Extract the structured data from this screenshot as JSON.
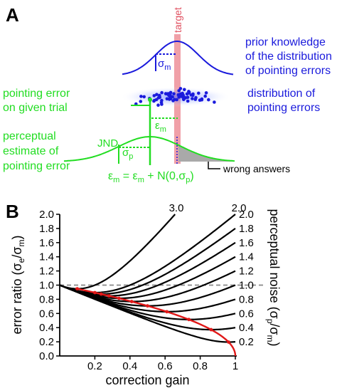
{
  "panel_a": {
    "label": "A",
    "target_label": "target",
    "prior": {
      "line1": "prior knowledge",
      "line2": "of the distribution",
      "line3": "of pointing errors",
      "sigma_symbol": "σ",
      "sigma_sub": "m"
    },
    "distribution": {
      "line1": "distribution of",
      "line2": "pointing errors"
    },
    "pointing_error": {
      "line1": "pointing error",
      "line2": "on given trial"
    },
    "epsilon_symbol": "ε",
    "epsilon_sub": "m",
    "perceptual": {
      "line1": "perceptual",
      "line2": "estimate of",
      "line3": "pointing error",
      "jnd": "JND",
      "sigma_symbol": "σ",
      "sigma_sub": "p"
    },
    "equation": {
      "eps1": "ε",
      "sub1": "m",
      "mid": " = ε",
      "sub2": "m",
      "tail1": " + N(0,σ",
      "sub3": "p",
      "tail2": ")"
    },
    "wrong_answers": "wrong answers",
    "colors": {
      "blue": "#1a1adc",
      "green": "#22dd22",
      "target": "#f0a0a8",
      "gray": "#a9a9a9"
    }
  },
  "panel_b": {
    "label": "B",
    "chart_data": {
      "type": "line",
      "xlabel": "correction gain",
      "ylabel_main": "error ratio (σ",
      "ylabel_sub1": "e",
      "ylabel_mid": "/σ",
      "ylabel_sub2": "m",
      "ylabel_end": ")",
      "right_label_main": "perceptual noise (σ",
      "right_label_sub1": "p",
      "right_label_mid": "/σ",
      "right_label_sub2": "m",
      "right_label_end": ")",
      "xlim": [
        0,
        1
      ],
      "ylim": [
        0,
        2
      ],
      "x_ticks": [
        0.2,
        0.4,
        0.6,
        0.8,
        1
      ],
      "x_tick_labels": [
        "0.2",
        "0.4",
        "0.6",
        "0.8",
        "1"
      ],
      "y_ticks": [
        0,
        0.2,
        0.4,
        0.6,
        0.8,
        1.0,
        1.2,
        1.4,
        1.6,
        1.8,
        2.0
      ],
      "y_tick_labels": [
        "0.0",
        "0.2",
        "0.4",
        "0.6",
        "0.8",
        "1.0",
        "1.2",
        "1.4",
        "1.6",
        "1.8",
        "2.0"
      ],
      "noise_levels": [
        0.2,
        0.4,
        0.6,
        0.8,
        1.0,
        1.2,
        1.4,
        1.6,
        1.8,
        2.0,
        3.0
      ],
      "right_labels": [
        "0.2",
        "0.4",
        "0.6",
        "0.8",
        "1.0",
        "1.2",
        "1.4",
        "1.6",
        "1.8",
        "2.0"
      ],
      "right_label_values": [
        0.2,
        0.4,
        0.6,
        0.8,
        1.0,
        1.2,
        1.4,
        1.6,
        1.8,
        2.0
      ],
      "top_label_left": "3.0",
      "top_label_right": "2.0",
      "reference_line_y": 1.0,
      "optimal_curve_color": "#e01818",
      "curve_color": "#000000"
    }
  }
}
